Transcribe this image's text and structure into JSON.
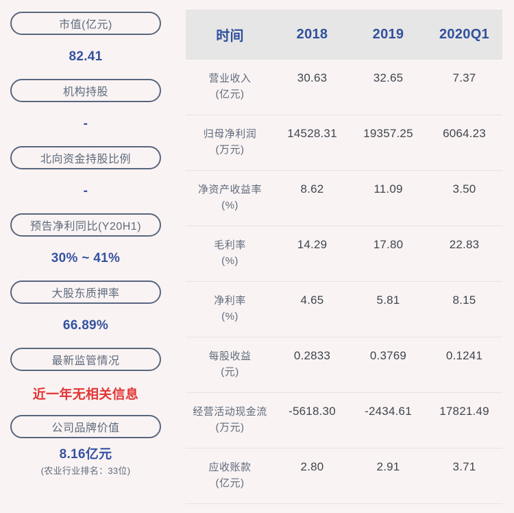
{
  "colors": {
    "page_background": "#faf3f3",
    "pill_border": "#56667e",
    "label_slate": "#5d6b7c",
    "accent_blue": "#3352a0",
    "header_blue": "#30519c",
    "alert_red": "#e23636",
    "header_background": "#e7e6e6",
    "divider": "#e9e2e2",
    "table_value": "#3e454e"
  },
  "sidebar": {
    "items": [
      {
        "label": "市值(亿元)",
        "value": "82.41"
      },
      {
        "label": "机构持股",
        "value": "-"
      },
      {
        "label": "北向资金持股比例",
        "value": "-"
      },
      {
        "label": "预告净利同比(Y20H1)",
        "value": "30% ~ 41%"
      },
      {
        "label": "大股东质押率",
        "value": "66.89%"
      },
      {
        "label": "最新监管情况",
        "value": "近一年无相关信息"
      },
      {
        "label": "公司品牌价值",
        "value": "8.16亿元",
        "note": "(农业行业排名：33位)"
      }
    ]
  },
  "table": {
    "headers": [
      "时间",
      "2018",
      "2019",
      "2020Q1"
    ],
    "rows": [
      {
        "label": "营业收入",
        "unit": "(亿元)",
        "values": [
          "30.63",
          "32.65",
          "7.37"
        ]
      },
      {
        "label": "归母净利润",
        "unit": "(万元)",
        "values": [
          "14528.31",
          "19357.25",
          "6064.23"
        ]
      },
      {
        "label": "净资产收益率",
        "unit": "(%)",
        "values": [
          "8.62",
          "11.09",
          "3.50"
        ]
      },
      {
        "label": "毛利率",
        "unit": "(%)",
        "values": [
          "14.29",
          "17.80",
          "22.83"
        ]
      },
      {
        "label": "净利率",
        "unit": "(%)",
        "values": [
          "4.65",
          "5.81",
          "8.15"
        ]
      },
      {
        "label": "每股收益",
        "unit": "(元)",
        "values": [
          "0.2833",
          "0.3769",
          "0.1241"
        ]
      },
      {
        "label": "经营活动现金流",
        "unit": "(万元)",
        "values": [
          "-5618.30",
          "-2434.61",
          "17821.49"
        ]
      },
      {
        "label": "应收账款",
        "unit": "(亿元)",
        "values": [
          "2.80",
          "2.91",
          "3.71"
        ]
      }
    ]
  }
}
